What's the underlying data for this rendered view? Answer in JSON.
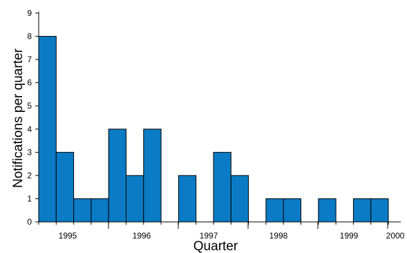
{
  "chart_data": {
    "type": "bar",
    "xlabel": "Quarter",
    "ylabel": "Notifications per quarter",
    "ylim": [
      0,
      9
    ],
    "yticks": [
      "0",
      "1",
      "2",
      "3",
      "4",
      "5",
      "6",
      "7",
      "8",
      "9"
    ],
    "x_tick_labels": [
      "1995",
      "1996",
      "1997",
      "1998",
      "1999",
      "2000"
    ],
    "grid": false,
    "legend": "none",
    "bar_color": "#0a7bc4",
    "bar_edge_color": "#000000",
    "bars": [
      {
        "quarter": "1994 Q4",
        "value": 8
      },
      {
        "quarter": "1995 Q1",
        "value": 3
      },
      {
        "quarter": "1995 Q2",
        "value": 1
      },
      {
        "quarter": "1995 Q3",
        "value": 1
      },
      {
        "quarter": "1995 Q4",
        "value": 4
      },
      {
        "quarter": "1996 Q1",
        "value": 2
      },
      {
        "quarter": "1996 Q2",
        "value": 4
      },
      {
        "quarter": "1996 Q3",
        "value": 0
      },
      {
        "quarter": "1996 Q4",
        "value": 2
      },
      {
        "quarter": "1997 Q1",
        "value": 0
      },
      {
        "quarter": "1997 Q2",
        "value": 3
      },
      {
        "quarter": "1997 Q3",
        "value": 2
      },
      {
        "quarter": "1997 Q4",
        "value": 0
      },
      {
        "quarter": "1998 Q1",
        "value": 1
      },
      {
        "quarter": "1998 Q2",
        "value": 1
      },
      {
        "quarter": "1998 Q3",
        "value": 0
      },
      {
        "quarter": "1998 Q4",
        "value": 1
      },
      {
        "quarter": "1999 Q1",
        "value": 0
      },
      {
        "quarter": "1999 Q2",
        "value": 1
      },
      {
        "quarter": "1999 Q3",
        "value": 1
      }
    ]
  }
}
